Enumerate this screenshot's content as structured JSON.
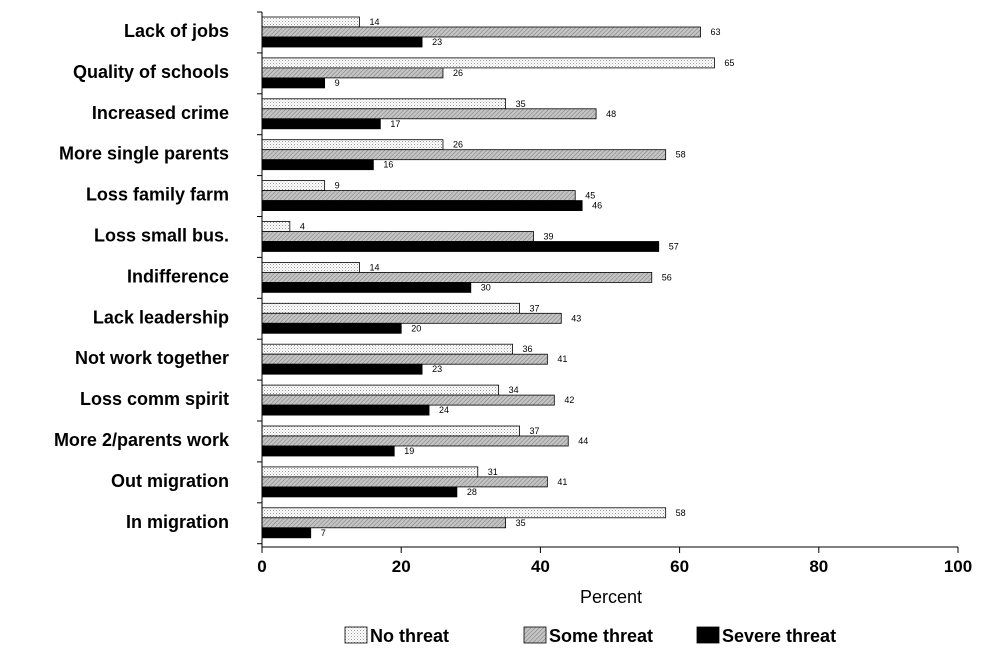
{
  "chart_data": {
    "type": "bar",
    "orientation": "horizontal",
    "categories": [
      "Lack of jobs",
      "Quality of schools",
      "Increased crime",
      "More single parents",
      "Loss family farm",
      "Loss small bus.",
      "Indifference",
      "Lack leadership",
      "Not work together",
      "Loss comm spirit",
      "More 2/parents work",
      "Out migration",
      "In migration"
    ],
    "series": [
      {
        "name": "No threat",
        "values": [
          14,
          65,
          35,
          26,
          9,
          4,
          14,
          37,
          36,
          34,
          37,
          31,
          58
        ],
        "color": "#f4f4f4",
        "pattern": "dotted"
      },
      {
        "name": "Some threat",
        "values": [
          63,
          26,
          48,
          58,
          45,
          39,
          56,
          43,
          41,
          42,
          44,
          41,
          35
        ],
        "color": "#b0b0b0",
        "pattern": "hatched"
      },
      {
        "name": "Severe threat",
        "values": [
          23,
          9,
          17,
          16,
          46,
          57,
          30,
          20,
          23,
          24,
          19,
          28,
          7
        ],
        "color": "#000000",
        "pattern": "solid"
      }
    ],
    "xlabel": "Percent",
    "xlim": [
      0,
      100
    ],
    "xticks": [
      "0",
      "20",
      "40",
      "60",
      "80",
      "100"
    ],
    "legend_position": "bottom",
    "grid": false
  }
}
